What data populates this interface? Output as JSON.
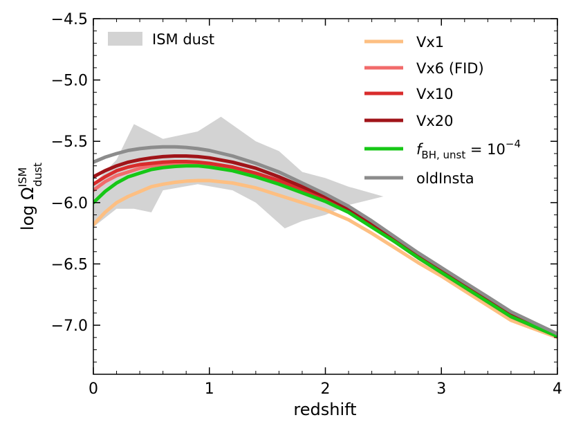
{
  "chart_data": {
    "type": "line",
    "title": "",
    "xlabel": "redshift",
    "ylabel": {
      "base": "log Ω",
      "sup": "ISM",
      "sub": "dust"
    },
    "xlim": [
      0,
      4
    ],
    "ylim": [
      -7.4,
      -4.5
    ],
    "xticks": [
      0,
      1,
      2,
      3,
      4
    ],
    "xtick_labels": [
      "0",
      "1",
      "2",
      "3",
      "4"
    ],
    "yticks": [
      -7.0,
      -6.5,
      -6.0,
      -5.5,
      -5.0,
      -4.5
    ],
    "ytick_labels": [
      "−7.0",
      "−6.5",
      "−6.0",
      "−5.5",
      "−5.0",
      "−4.5"
    ],
    "grid": false,
    "shaded_region": {
      "name": "ISM dust",
      "color": "#d3d3d3",
      "upper": {
        "x": [
          0.0,
          0.2,
          0.35,
          0.6,
          0.9,
          1.1,
          1.4,
          1.6,
          1.8,
          2.0,
          2.2,
          2.5
        ],
        "y": [
          -5.85,
          -5.65,
          -5.36,
          -5.48,
          -5.42,
          -5.3,
          -5.5,
          -5.58,
          -5.75,
          -5.8,
          -5.87,
          -5.95
        ]
      },
      "lower": {
        "x": [
          0.0,
          0.2,
          0.35,
          0.5,
          0.6,
          0.9,
          1.2,
          1.4,
          1.65,
          1.8,
          2.0,
          2.2,
          2.5
        ],
        "y": [
          -6.2,
          -6.05,
          -6.05,
          -6.08,
          -5.9,
          -5.85,
          -5.9,
          -6.0,
          -6.21,
          -6.15,
          -6.1,
          -6.02,
          -5.95
        ]
      }
    },
    "legend_shade_label": "ISM dust",
    "series": [
      {
        "name": "Vx1",
        "color": "#fdbf82",
        "x": [
          0,
          0.1,
          0.2,
          0.3,
          0.4,
          0.5,
          0.6,
          0.7,
          0.8,
          0.9,
          1.0,
          1.2,
          1.4,
          1.6,
          1.8,
          2.0,
          2.2,
          2.4,
          2.6,
          2.8,
          3.0,
          3.2,
          3.4,
          3.6,
          3.8,
          4.0
        ],
        "y": [
          -6.18,
          -6.08,
          -6.0,
          -5.95,
          -5.91,
          -5.87,
          -5.85,
          -5.835,
          -5.825,
          -5.82,
          -5.82,
          -5.84,
          -5.88,
          -5.94,
          -6.0,
          -6.06,
          -6.14,
          -6.25,
          -6.37,
          -6.49,
          -6.6,
          -6.72,
          -6.84,
          -6.96,
          -7.03,
          -7.1
        ]
      },
      {
        "name": "Vx6 (FID)",
        "color": "#f16b6b",
        "x": [
          0,
          0.1,
          0.2,
          0.3,
          0.4,
          0.5,
          0.6,
          0.7,
          0.8,
          0.9,
          1.0,
          1.2,
          1.4,
          1.6,
          1.8,
          2.0,
          2.2,
          2.4,
          2.6,
          2.8,
          3.0,
          3.2,
          3.4,
          3.6,
          3.8,
          4.0
        ],
        "y": [
          -5.9,
          -5.83,
          -5.78,
          -5.75,
          -5.72,
          -5.7,
          -5.69,
          -5.685,
          -5.685,
          -5.69,
          -5.7,
          -5.73,
          -5.77,
          -5.83,
          -5.9,
          -5.98,
          -6.07,
          -6.19,
          -6.32,
          -6.45,
          -6.57,
          -6.69,
          -6.81,
          -6.93,
          -7.01,
          -7.09
        ]
      },
      {
        "name": "Vx10",
        "color": "#d92c2c",
        "x": [
          0,
          0.1,
          0.2,
          0.3,
          0.4,
          0.5,
          0.6,
          0.7,
          0.8,
          0.9,
          1.0,
          1.2,
          1.4,
          1.6,
          1.8,
          2.0,
          2.2,
          2.4,
          2.6,
          2.8,
          3.0,
          3.2,
          3.4,
          3.6,
          3.8,
          4.0
        ],
        "y": [
          -5.85,
          -5.79,
          -5.74,
          -5.71,
          -5.69,
          -5.68,
          -5.67,
          -5.665,
          -5.665,
          -5.67,
          -5.68,
          -5.71,
          -5.76,
          -5.82,
          -5.89,
          -5.97,
          -6.07,
          -6.19,
          -6.32,
          -6.45,
          -6.57,
          -6.69,
          -6.81,
          -6.93,
          -7.01,
          -7.09
        ]
      },
      {
        "name": "Vx20",
        "color": "#a01419",
        "x": [
          0,
          0.1,
          0.2,
          0.3,
          0.4,
          0.5,
          0.6,
          0.7,
          0.8,
          0.9,
          1.0,
          1.2,
          1.4,
          1.6,
          1.8,
          2.0,
          2.2,
          2.4,
          2.6,
          2.8,
          3.0,
          3.2,
          3.4,
          3.6,
          3.8,
          4.0
        ],
        "y": [
          -5.79,
          -5.74,
          -5.7,
          -5.67,
          -5.65,
          -5.635,
          -5.625,
          -5.62,
          -5.62,
          -5.625,
          -5.635,
          -5.67,
          -5.72,
          -5.79,
          -5.87,
          -5.95,
          -6.05,
          -6.17,
          -6.3,
          -6.44,
          -6.56,
          -6.68,
          -6.8,
          -6.92,
          -7.0,
          -7.08
        ]
      },
      {
        "name": "f_BH,unst = 10^-4",
        "color": "#16c716",
        "x": [
          0,
          0.1,
          0.2,
          0.3,
          0.4,
          0.5,
          0.6,
          0.7,
          0.8,
          0.9,
          1.0,
          1.2,
          1.4,
          1.6,
          1.8,
          2.0,
          2.2,
          2.4,
          2.6,
          2.8,
          3.0,
          3.2,
          3.4,
          3.6,
          3.8,
          4.0
        ],
        "y": [
          -6.0,
          -5.91,
          -5.84,
          -5.79,
          -5.76,
          -5.73,
          -5.715,
          -5.705,
          -5.7,
          -5.7,
          -5.71,
          -5.74,
          -5.79,
          -5.85,
          -5.92,
          -5.99,
          -6.08,
          -6.2,
          -6.32,
          -6.45,
          -6.57,
          -6.69,
          -6.81,
          -6.93,
          -7.01,
          -7.09
        ]
      },
      {
        "name": "oldInsta",
        "color": "#8c8c8c",
        "x": [
          0,
          0.1,
          0.2,
          0.3,
          0.4,
          0.5,
          0.6,
          0.7,
          0.8,
          0.9,
          1.0,
          1.2,
          1.4,
          1.6,
          1.8,
          2.0,
          2.2,
          2.4,
          2.6,
          2.8,
          3.0,
          3.2,
          3.4,
          3.6,
          3.8,
          4.0
        ],
        "y": [
          -5.67,
          -5.63,
          -5.6,
          -5.575,
          -5.56,
          -5.55,
          -5.545,
          -5.545,
          -5.55,
          -5.56,
          -5.575,
          -5.62,
          -5.68,
          -5.75,
          -5.84,
          -5.93,
          -6.03,
          -6.15,
          -6.28,
          -6.41,
          -6.53,
          -6.65,
          -6.77,
          -6.89,
          -6.98,
          -7.07
        ]
      }
    ],
    "legend": [
      {
        "label": "Vx1",
        "color": "#fdbf82"
      },
      {
        "label": "Vx6 (FID)",
        "color": "#f16b6b"
      },
      {
        "label": "Vx10",
        "color": "#d92c2c"
      },
      {
        "label": "Vx20",
        "color": "#a01419"
      },
      {
        "label": "f_BH,unst = 10^-4",
        "label_parts": {
          "f": "f",
          "sub": "BH, unst",
          "eq": " = 10",
          "sup": "−4"
        },
        "color": "#16c716"
      },
      {
        "label": "oldInsta",
        "color": "#8c8c8c"
      }
    ]
  }
}
